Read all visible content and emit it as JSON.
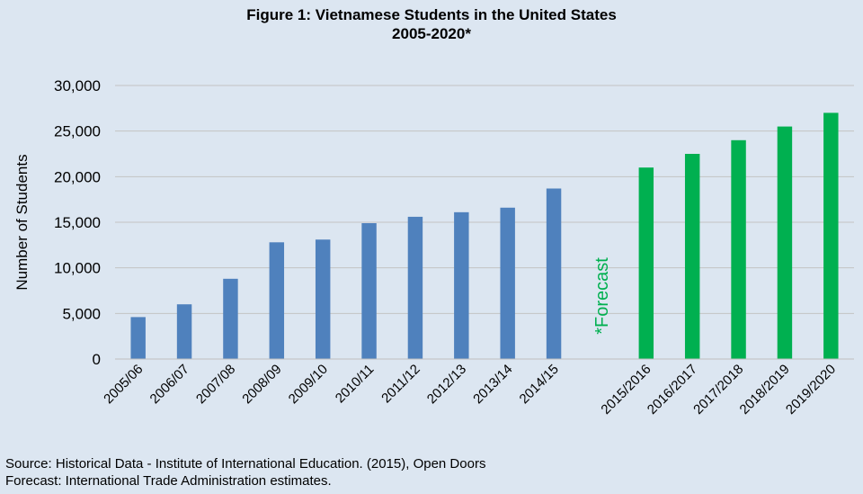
{
  "chart_data": {
    "type": "bar",
    "title": "Figure 1: Vietnamese Students in the United States",
    "subtitle": "2005-2020*",
    "xlabel": "",
    "ylabel": "Number of Students",
    "ylim": [
      0,
      30000
    ],
    "yticks": [
      "0",
      "5,000",
      "10,000",
      "15,000",
      "20,000",
      "25,000",
      "30,000"
    ],
    "grid": true,
    "series": [
      {
        "name": "",
        "color": "#4f81bd",
        "categories": [
          "2005/06",
          "2006/07",
          "2007/08",
          "2008/09",
          "2009/10",
          "2010/11",
          "2011/12",
          "2012/13",
          "2013/14",
          "2014/15"
        ],
        "values": [
          4600,
          6000,
          8800,
          12800,
          13100,
          14900,
          15600,
          16100,
          16600,
          18700
        ]
      },
      {
        "name": "",
        "color": "#00b050",
        "categories": [
          "2015/2016",
          "2016/2017",
          "2017/2018",
          "2018/2019",
          "2019/2020"
        ],
        "values": [
          21000,
          22500,
          24000,
          25500,
          27000
        ]
      }
    ],
    "annotations": [
      {
        "text": "*Forecast",
        "color": "#00b050"
      }
    ]
  },
  "footnotes": {
    "source": "Source: Historical Data - Institute of International Education. (2015), Open Doors",
    "forecast": "Forecast: International Trade Administration estimates."
  }
}
